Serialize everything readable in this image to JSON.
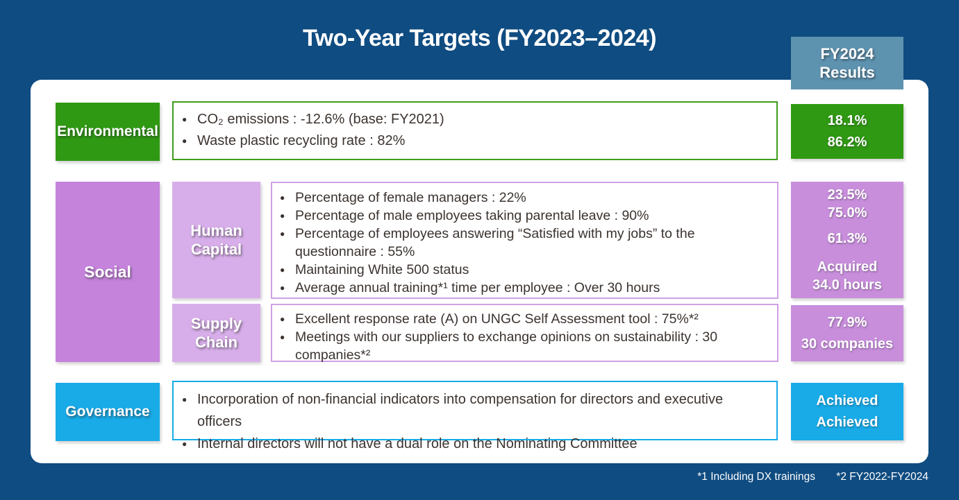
{
  "title": "Two-Year Targets (FY2023–2024)",
  "results_header": {
    "line1": "FY2024",
    "line2": "Results"
  },
  "colors": {
    "background": "#0F4C81",
    "panel": "#FFFFFF",
    "results_header": "#5E93B0",
    "environmental_green": "#2F9913",
    "social_purple": "#C583DC",
    "subcategory_purple": "#D7AEE9",
    "result_purple": "#C88EDC",
    "purple_border": "#CFA0E4",
    "governance_cyan": "#18ABE8",
    "body_text": "#3B332F"
  },
  "rows": {
    "environmental": {
      "label": "Environmental",
      "bullets": [
        "CO₂ emissions : -12.6% (base: FY2021)",
        "Waste plastic recycling rate : 82%"
      ],
      "results": [
        "18.1%",
        "86.2%"
      ]
    },
    "social": {
      "label": "Social",
      "human_capital": {
        "label": "Human Capital",
        "bullets": [
          "Percentage of female managers : 22%",
          "Percentage of male employees taking parental leave : 90%",
          "Percentage of employees answering “Satisfied with my jobs” to the questionnaire : 55%",
          "Maintaining White 500 status",
          "Average annual training*¹ time per employee : Over 30 hours"
        ],
        "results": [
          "23.5%",
          "75.0%",
          "61.3%",
          "Acquired",
          "34.0 hours"
        ]
      },
      "supply_chain": {
        "label": "Supply Chain",
        "bullets": [
          "Excellent response rate (A) on UNGC Self Assessment tool : 75%*²",
          "Meetings with our suppliers to exchange opinions on sustainability : 30 companies*²"
        ],
        "results": [
          "77.9%",
          "30 companies"
        ]
      }
    },
    "governance": {
      "label": "Governance",
      "bullets": [
        "Incorporation of non-financial indicators into compensation for directors and executive officers",
        "Internal directors will not have a dual role on the Nominating Committee"
      ],
      "results": [
        "Achieved",
        "Achieved"
      ]
    }
  },
  "footnotes": [
    "*1 Including DX trainings",
    "*2 FY2022-FY2024"
  ]
}
